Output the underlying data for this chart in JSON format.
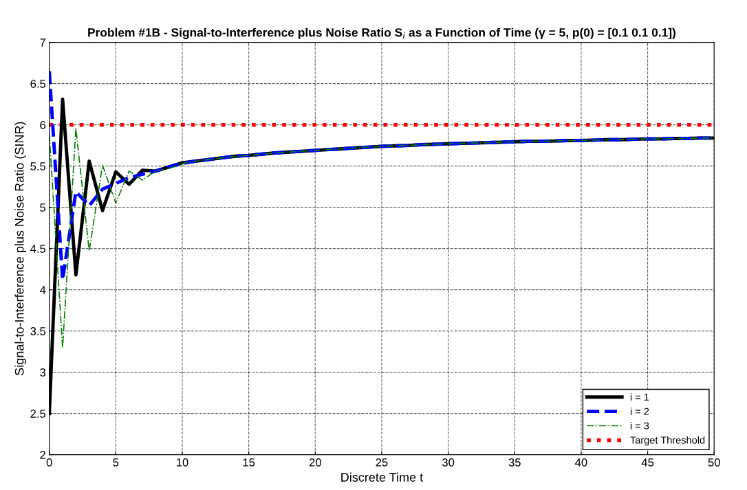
{
  "chart_data": {
    "type": "line",
    "title": "Problem #1B - Signal-to-Interference plus Noise Ratio S$_{i}$ as a Function of Time (γ = 5, p(0) = [0.1 0.1 0.1])",
    "xlabel": "Discrete Time t",
    "ylabel": "Signal-to-Interference plus Noise Ratio (SINR)",
    "x": [
      0,
      1,
      2,
      3,
      4,
      5,
      6,
      7,
      8,
      9,
      10,
      11,
      12,
      13,
      14,
      15,
      16,
      17,
      18,
      19,
      20,
      21,
      22,
      23,
      24,
      25,
      26,
      27,
      28,
      29,
      30,
      31,
      32,
      33,
      34,
      35,
      36,
      37,
      38,
      39,
      40,
      41,
      42,
      43,
      44,
      45,
      46,
      47,
      48,
      49,
      50
    ],
    "series": [
      {
        "name": "i = 1",
        "color": "#000000",
        "line_style": "solid",
        "values": [
          2.5,
          6.31,
          4.18,
          5.56,
          4.96,
          5.43,
          5.28,
          5.45,
          5.44,
          5.49,
          5.54,
          5.56,
          5.58,
          5.6,
          5.62,
          5.63,
          5.645,
          5.66,
          5.67,
          5.68,
          5.69,
          5.7,
          5.71,
          5.72,
          5.73,
          5.74,
          5.745,
          5.75,
          5.76,
          5.765,
          5.77,
          5.775,
          5.78,
          5.785,
          5.79,
          5.795,
          5.8,
          5.8,
          5.805,
          5.81,
          5.81,
          5.815,
          5.82,
          5.82,
          5.825,
          5.83,
          5.83,
          5.835,
          5.835,
          5.84,
          5.84
        ]
      },
      {
        "name": "i = 2",
        "color": "#0000ff",
        "line_style": "dashed",
        "values": [
          6.65,
          4.12,
          5.19,
          5.02,
          5.22,
          5.29,
          5.36,
          5.4,
          5.44,
          5.49,
          5.53,
          5.56,
          5.58,
          5.6,
          5.62,
          5.63,
          5.645,
          5.66,
          5.67,
          5.68,
          5.69,
          5.7,
          5.71,
          5.72,
          5.73,
          5.74,
          5.745,
          5.75,
          5.76,
          5.765,
          5.77,
          5.775,
          5.78,
          5.785,
          5.79,
          5.795,
          5.8,
          5.8,
          5.805,
          5.81,
          5.81,
          5.815,
          5.82,
          5.82,
          5.825,
          5.83,
          5.83,
          5.835,
          5.835,
          5.84,
          5.84
        ]
      },
      {
        "name": "i = 3",
        "color": "#008000",
        "line_style": "dashdot",
        "values": [
          5.89,
          3.3,
          5.96,
          4.47,
          5.51,
          5.05,
          5.44,
          5.33,
          5.44,
          5.47,
          5.53,
          5.56,
          5.58,
          5.6,
          5.62,
          5.63,
          5.645,
          5.66,
          5.67,
          5.68,
          5.69,
          5.7,
          5.71,
          5.72,
          5.73,
          5.74,
          5.745,
          5.75,
          5.76,
          5.765,
          5.77,
          5.775,
          5.78,
          5.785,
          5.79,
          5.795,
          5.8,
          5.8,
          5.805,
          5.81,
          5.81,
          5.815,
          5.82,
          5.82,
          5.825,
          5.83,
          5.83,
          5.835,
          5.835,
          5.84,
          5.84
        ]
      }
    ],
    "ref_lines": [
      {
        "axis": "y",
        "value": 6,
        "label": "Target Threshold",
        "color": "#ff0000",
        "line_style": "dotted"
      }
    ],
    "xlim": [
      0,
      50
    ],
    "xticks": [
      0,
      5,
      10,
      15,
      20,
      25,
      30,
      35,
      40,
      45,
      50
    ],
    "ylim": [
      2,
      7
    ],
    "yticks": [
      2,
      2.5,
      3,
      3.5,
      4,
      4.5,
      5,
      5.5,
      6,
      6.5,
      7
    ],
    "grid": true,
    "legend": "bottom right"
  }
}
